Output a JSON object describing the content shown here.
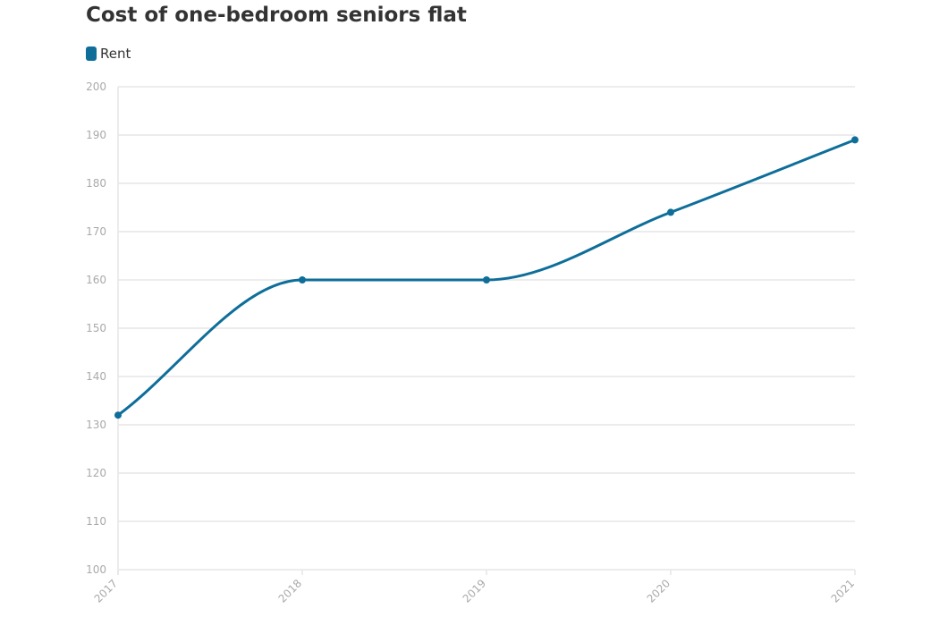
{
  "chart_data": {
    "type": "line",
    "title": "Cost of one-bedroom seniors flat",
    "xlabel": "",
    "ylabel": "",
    "categories": [
      "2017",
      "2018",
      "2019",
      "2020",
      "2021"
    ],
    "series": [
      {
        "name": "Rent",
        "values": [
          132,
          160,
          160,
          174,
          189
        ]
      }
    ],
    "ylim": [
      100,
      200
    ],
    "yticks": [
      "100",
      "110",
      "120",
      "130",
      "140",
      "150",
      "160",
      "170",
      "180",
      "190",
      "200"
    ],
    "grid": true,
    "legend_position": "top-left",
    "colors": {
      "series": "#0e6e99",
      "grid": "#e6e6e6",
      "tick": "#aaaaaa"
    }
  }
}
